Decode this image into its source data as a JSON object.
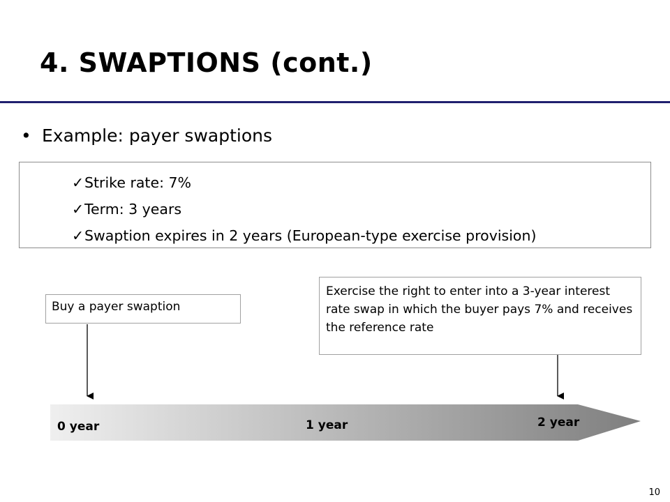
{
  "slide": {
    "title": "4. SWAPTIONS (cont.)",
    "page_number": "10"
  },
  "bullet": {
    "symbol": "•",
    "text": "Example: payer swaptions"
  },
  "checklist": {
    "symbol": "✓",
    "items": [
      "Strike rate: 7%",
      "Term: 3 years",
      "Swaption expires in 2 years (European-type exercise provision)"
    ]
  },
  "timeline": {
    "labels": [
      "0 year",
      "1 year",
      "2 year"
    ],
    "left_callout": "Buy a payer swaption",
    "right_callout": "Exercise the right to enter into a 3-year interest rate swap in which the buyer pays 7% and receives the reference rate",
    "colors": {
      "arrow_start": "#efefef",
      "arrow_end": "#7f7f7f",
      "title_rule": "#1f1f6e"
    }
  }
}
